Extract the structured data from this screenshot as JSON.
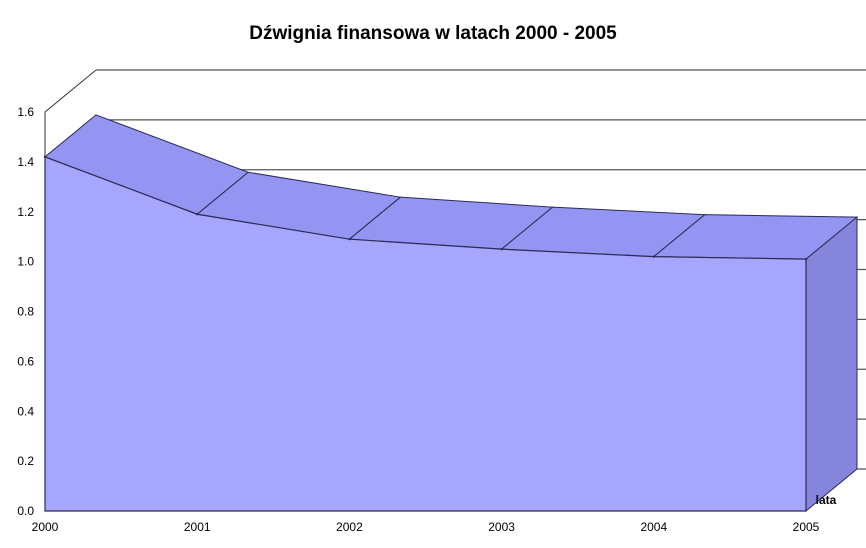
{
  "chart_data": {
    "type": "area",
    "title": "Dźwignia finansowa w latach 2000 - 2005",
    "xlabel": "lata",
    "ylabel": "",
    "x": [
      "2000",
      "2001",
      "2002",
      "2003",
      "2004",
      "2005"
    ],
    "series": [
      {
        "values": [
          1.42,
          1.19,
          1.09,
          1.05,
          1.02,
          1.01
        ]
      }
    ],
    "ylim": [
      0,
      1.6
    ],
    "yticks": [
      "0.0",
      "0.2",
      "0.4",
      "0.6",
      "0.8",
      "1.0",
      "1.2",
      "1.4",
      "1.6"
    ],
    "grid": true,
    "three_d": true,
    "colors": {
      "front": "#a6a6ff",
      "top": "#9494f2",
      "side": "#8585dc",
      "edge": "#2b2b55"
    }
  }
}
